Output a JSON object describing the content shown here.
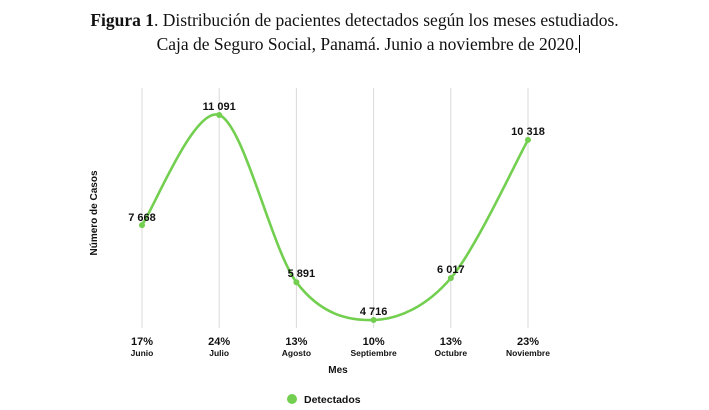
{
  "figure": {
    "label": "Figura 1",
    "caption_rest": ". Distribución de pacientes detectados según los meses estudiados.",
    "caption_line2": "Caja de Seguro Social, Panamá. Junio a noviembre de 2020."
  },
  "colors": {
    "series": "#72CF4F",
    "grid": "#D9D9D9",
    "text": "#111111"
  },
  "chart_data": {
    "type": "line",
    "title": "Distribución de pacientes detectados según los meses estudiados",
    "xlabel": "Mes",
    "ylabel": "Número de Casos",
    "categories": [
      "Junio",
      "Julio",
      "Agosto",
      "Septiembre",
      "Octubre",
      "Noviembre"
    ],
    "percent_labels": [
      "17%",
      "24%",
      "13%",
      "10%",
      "13%",
      "23%"
    ],
    "series": [
      {
        "name": "Detectados",
        "values": [
          7668,
          11091,
          5891,
          4716,
          6017,
          10318
        ],
        "value_labels": [
          "7 668",
          "11 091",
          "5 891",
          "4 716",
          "6 017",
          "10 318"
        ]
      }
    ],
    "ylim": [
      4716,
      11091
    ],
    "grid": "vertical",
    "smooth": true,
    "legend": "bottom-center"
  }
}
